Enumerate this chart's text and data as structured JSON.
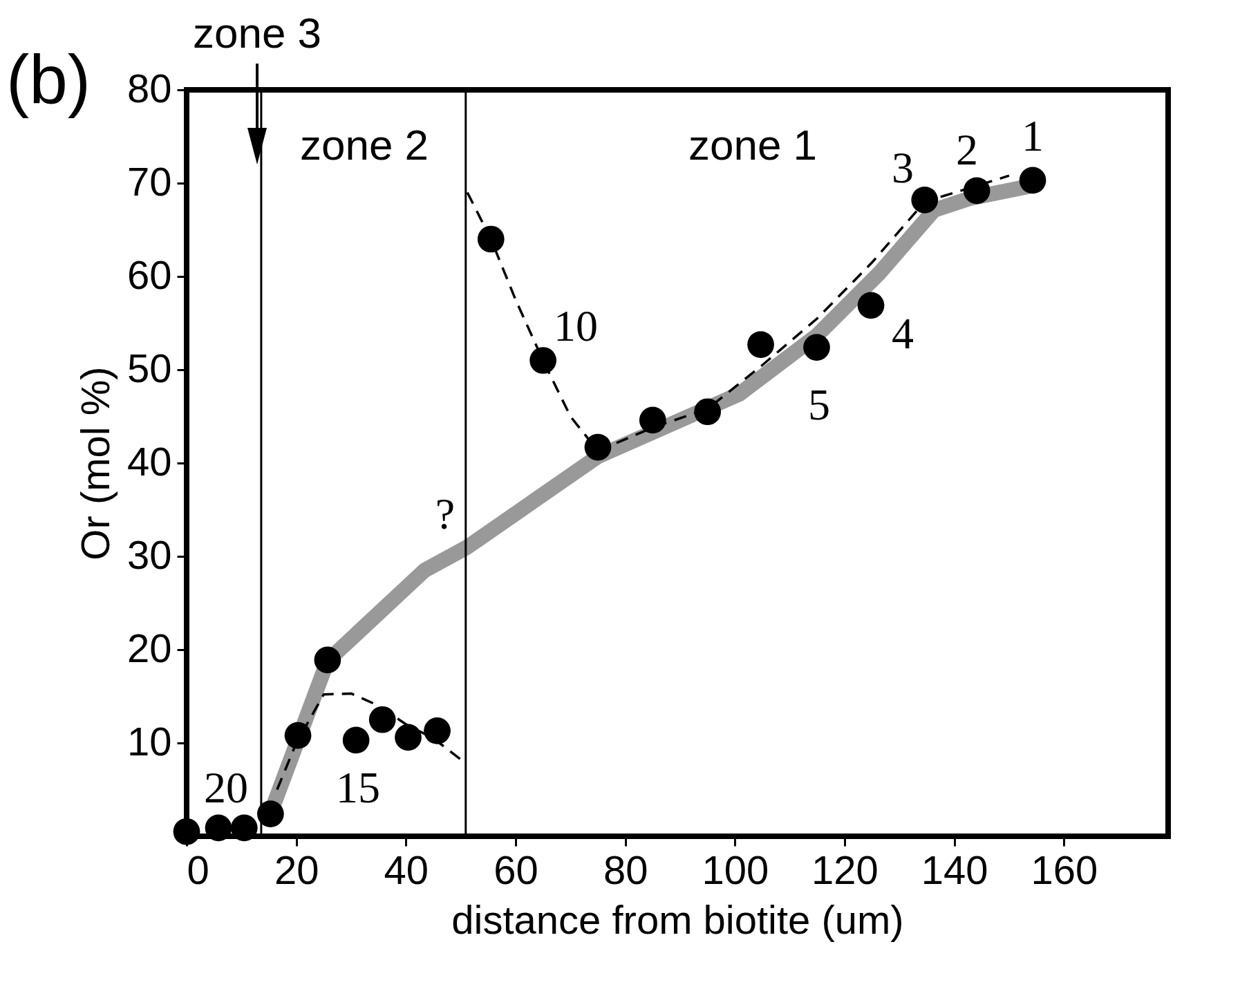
{
  "chart_data": {
    "type": "scatter",
    "xlabel": "distance from biotite (um)",
    "ylabel": "Or  (mol %)",
    "xlim": [
      0,
      179
    ],
    "xticks": [
      0,
      20,
      40,
      60,
      80,
      100,
      120,
      140,
      160
    ],
    "ylim": [
      0,
      80
    ],
    "yticks": [
      10,
      20,
      30,
      40,
      50,
      60,
      70,
      80
    ],
    "grid": false,
    "series": [
      {
        "type": "line",
        "color": "#999999",
        "line_style": "solid",
        "marker": "none",
        "x": [
          15,
          25.7,
          43.4,
          51.2,
          75,
          100.8,
          115,
          126.4,
          136.3,
          143,
          154.8
        ],
        "values": [
          2,
          18.8,
          28.5,
          31,
          40.7,
          47.4,
          53.7,
          60.4,
          67.1,
          68.4,
          69.8
        ]
      },
      {
        "type": "line",
        "color": "#000000",
        "line_style": "dashed",
        "marker": "none",
        "x": [
          16.5,
          20,
          25,
          30,
          35,
          40,
          45,
          50.5
        ],
        "values": [
          5,
          10,
          15.2,
          15.3,
          14,
          12,
          10.5,
          8
        ]
      },
      {
        "type": "line",
        "color": "#000000",
        "line_style": "dashed",
        "marker": "none",
        "x": [
          51.2,
          55.5,
          60,
          65,
          70,
          75,
          85,
          95,
          105,
          115,
          125,
          134.6,
          144,
          150
        ],
        "values": [
          69,
          64,
          57.5,
          51,
          45,
          41.3,
          43.8,
          45.8,
          50.5,
          55.5,
          61.5,
          68,
          69.7,
          70.8
        ]
      },
      {
        "color": "#000000",
        "marker": "circle",
        "x": [
          0,
          5.8,
          10.5,
          15.3,
          20.3,
          25.7,
          30.9,
          35.7,
          40.4,
          45.7,
          55.5,
          65,
          75,
          85,
          95,
          104.7,
          114.9,
          124.8,
          134.6,
          144.1,
          154.3
        ],
        "values": [
          0.5,
          0.9,
          0.9,
          2.4,
          10.8,
          18.9,
          10.3,
          12.5,
          10.6,
          11.3,
          64,
          51,
          41.7,
          44.6,
          45.5,
          52.7,
          52.4,
          56.9,
          68.2,
          69.2,
          70.3
        ]
      }
    ],
    "ref_lines": [
      {
        "axis": "x",
        "value": 13.6,
        "color": "#000000"
      },
      {
        "axis": "x",
        "value": 50.9,
        "color": "#000000"
      }
    ],
    "annotations": [
      "(b)",
      "zone 3",
      "zone 2",
      "zone 1",
      "1",
      "2",
      "3",
      "4",
      "5",
      "10",
      "15",
      "20",
      "?"
    ]
  }
}
